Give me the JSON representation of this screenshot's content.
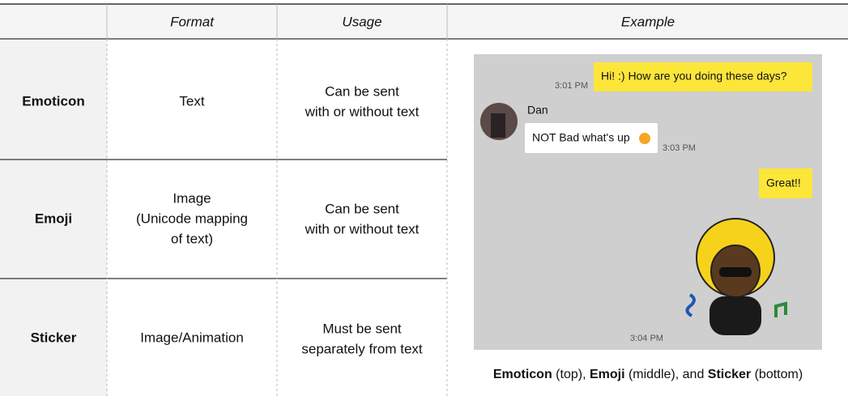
{
  "table": {
    "headers": [
      "Format",
      "Usage",
      "Example"
    ],
    "rows": [
      {
        "name": "Emoticon",
        "format": [
          "Text"
        ],
        "usage": [
          "Can be sent",
          "with or without text"
        ]
      },
      {
        "name": "Emoji",
        "format": [
          "Image",
          "(Unicode mapping",
          "of text)"
        ],
        "usage": [
          "Can be sent",
          "with or without text"
        ]
      },
      {
        "name": "Sticker",
        "format": [
          "Image/Animation"
        ],
        "usage": [
          "Must be sent",
          "separately from text"
        ]
      }
    ]
  },
  "example": {
    "messages": [
      {
        "text": "Hi! :) How are you doing these days?",
        "time": "3:01 PM"
      },
      {
        "sender": "Dan",
        "text": "NOT Bad what's up",
        "time": "3:03 PM"
      },
      {
        "text": "Great!!"
      },
      {
        "time": "3:04 PM"
      }
    ],
    "caption": [
      {
        "text": "Emoticon",
        "bold": true
      },
      {
        "text": " (top), ",
        "bold": false
      },
      {
        "text": "Emoji",
        "bold": true
      },
      {
        "text": " (middle), and ",
        "bold": false
      },
      {
        "text": "Sticker",
        "bold": true
      },
      {
        "text": " (bottom)",
        "bold": false
      }
    ]
  }
}
